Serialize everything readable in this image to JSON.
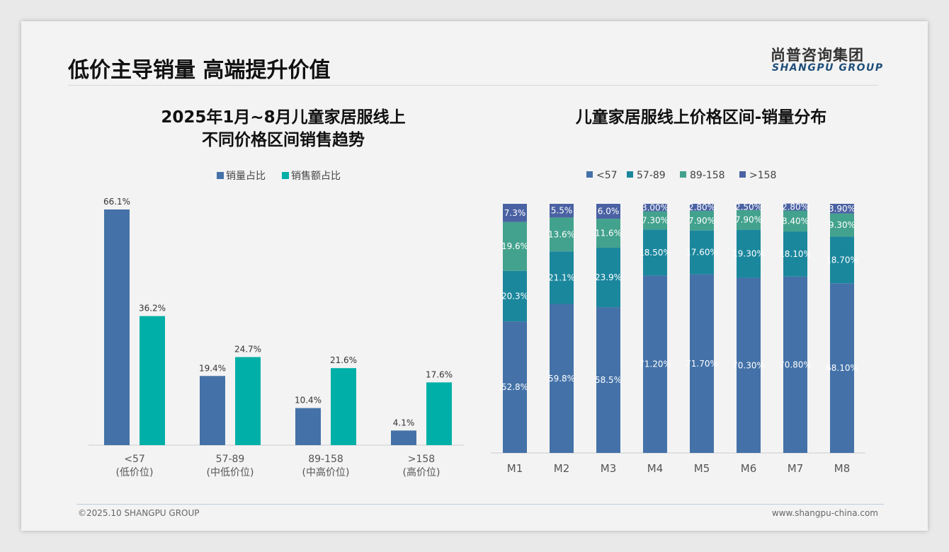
{
  "header": {
    "title": "低价主导销量 高端提升价值",
    "logo_cn": "尚普咨询集团",
    "logo_en": "SHANGPU GROUP"
  },
  "footer": {
    "copyright": "©2025.10 SHANGPU GROUP",
    "website": "www.shangpu-china.com"
  },
  "chart_data": [
    {
      "type": "bar",
      "title_line1": "2025年1月~8月儿童家居服线上",
      "title_line2": "不同价格区间销售趋势",
      "categories": [
        "<57",
        "57-89",
        "89-158",
        ">158"
      ],
      "category_sublabels": [
        "(低价位)",
        "(中低价位)",
        "(中高价位)",
        "(高价位)"
      ],
      "legend_position": "top",
      "series": [
        {
          "name": "销量占比",
          "color": "#4472a8",
          "values": [
            66.1,
            19.4,
            10.4,
            4.1
          ],
          "labels": [
            "66.1%",
            "19.4%",
            "10.4%",
            "4.1%"
          ]
        },
        {
          "name": "销售额占比",
          "color": "#00b0a8",
          "values": [
            36.2,
            24.7,
            21.6,
            17.6
          ],
          "labels": [
            "36.2%",
            "24.7%",
            "21.6%",
            "17.6%"
          ]
        }
      ],
      "ylim": [
        0,
        70
      ],
      "grid": false
    },
    {
      "type": "bar",
      "stacked": true,
      "title": "儿童家居服线上价格区间-销量分布",
      "categories": [
        "M1",
        "M2",
        "M3",
        "M4",
        "M5",
        "M6",
        "M7",
        "M8"
      ],
      "legend_position": "top",
      "ylim": [
        0,
        100
      ],
      "series": [
        {
          "name": "<57",
          "color": "#4472a8",
          "values": [
            52.8,
            59.8,
            58.5,
            71.2,
            71.7,
            70.3,
            70.8,
            68.1
          ],
          "labels": [
            "52.8%",
            "59.8%",
            "58.5%",
            "71.20%",
            "71.70%",
            "70.30%",
            "70.80%",
            "68.10%"
          ]
        },
        {
          "name": "57-89",
          "color": "#1b879d",
          "values": [
            20.3,
            21.1,
            23.9,
            18.5,
            17.6,
            19.3,
            18.1,
            18.7
          ],
          "labels": [
            "20.3%",
            "21.1%",
            "23.9%",
            "18.50%",
            "17.60%",
            "19.30%",
            "18.10%",
            "18.70%"
          ]
        },
        {
          "name": "89-158",
          "color": "#43a28d",
          "values": [
            19.6,
            13.6,
            11.6,
            7.3,
            7.9,
            7.9,
            8.4,
            9.3
          ],
          "labels": [
            "19.6%",
            "13.6%",
            "11.6%",
            "7.30%",
            "7.90%",
            "7.90%",
            "8.40%",
            "9.30%"
          ]
        },
        {
          "name": ">158",
          "color": "#4a62a3",
          "values": [
            7.3,
            5.5,
            6.0,
            3.0,
            2.8,
            2.5,
            2.8,
            3.9
          ],
          "labels": [
            "7.3%",
            "5.5%",
            "6.0%",
            "3.00%",
            "2.80%",
            "2.50%",
            "2.80%",
            "3.90%"
          ]
        }
      ]
    }
  ]
}
